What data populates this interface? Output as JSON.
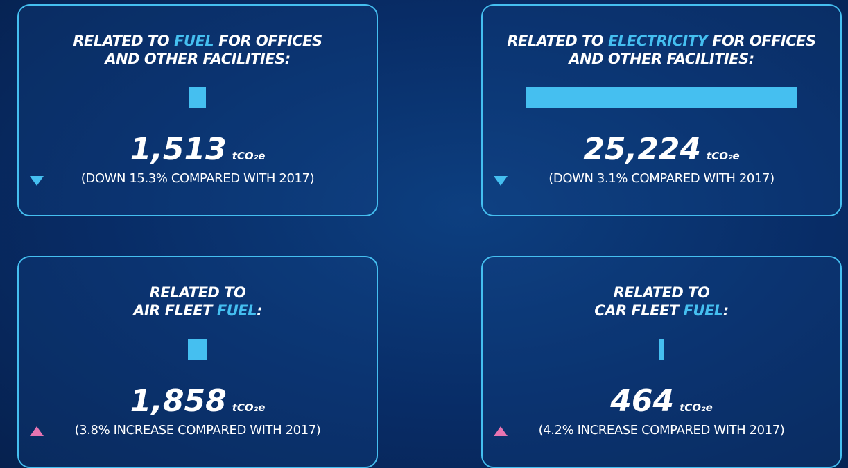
{
  "cards": [
    {
      "title_lines": [
        [
          {
            "text": "RELATED TO"
          },
          {
            "text": "FUEL",
            "highlight": true
          },
          {
            "text": "FOR OFFICES"
          }
        ],
        [
          {
            "text": "AND OTHER FACILITIES:"
          }
        ]
      ],
      "value": 1513,
      "value_label": "1,513",
      "unit": "tCO₂e",
      "change": "(DOWN 15.3% COMPARED WITH 2017)",
      "direction": "down"
    },
    {
      "title_lines": [
        [
          {
            "text": "RELATED TO"
          },
          {
            "text": "ELECTRICITY",
            "highlight": true
          },
          {
            "text": "FOR OFFICES"
          }
        ],
        [
          {
            "text": "AND OTHER FACILITIES:"
          }
        ]
      ],
      "value": 25224,
      "value_label": "25,224",
      "unit": "tCO₂e",
      "change": "(DOWN 3.1% COMPARED WITH 2017)",
      "direction": "down"
    },
    {
      "title_lines": [
        [
          {
            "text": "RELATED TO"
          }
        ],
        [
          {
            "text": "AIR FLEET"
          },
          {
            "text": "FUEL",
            "highlight": true
          },
          {
            "text": ":",
            "tight": true
          }
        ]
      ],
      "value": 1858,
      "value_label": "1,858",
      "unit": "tCO₂e",
      "change": "(3.8% INCREASE COMPARED WITH 2017)",
      "direction": "up"
    },
    {
      "title_lines": [
        [
          {
            "text": "RELATED TO"
          }
        ],
        [
          {
            "text": "CAR FLEET"
          },
          {
            "text": "FUEL",
            "highlight": true
          },
          {
            "text": ":",
            "tight": true
          }
        ]
      ],
      "value": 464,
      "value_label": "464",
      "unit": "tCO₂e",
      "change": "(4.2% INCREASE COMPARED WITH 2017)",
      "direction": "up"
    }
  ]
}
